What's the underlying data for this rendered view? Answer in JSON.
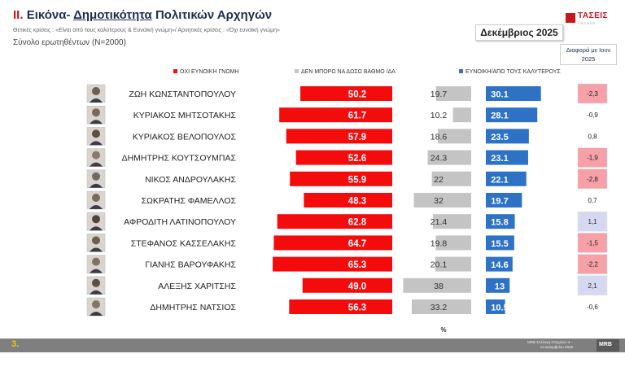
{
  "header": {
    "title_num": "II.",
    "title_a": "Εικόνα-",
    "title_b": "Δημοτικότητα",
    "title_c": "Πολιτικών Αρχηγών",
    "subtitle": "Θετικές κρίσεις : «Είναι από τους καλύτερους &  Ευνοϊκή γνώμη»/ Αρνητικές κρίσεις : «Όχι ευνοϊκή γνώμη»",
    "sample": "Σύνολο ερωτηθέντων (Ν=2000)",
    "month": "Δεκέμβριος 2025",
    "diff_header": "Διαφορά με Ιουν 2025",
    "logo_text": "ΤΑΣΕΙΣ",
    "logo_sub": "TRENDS"
  },
  "footer": {
    "page": "3.",
    "source": "MRB Συλλογή στοιχείων 4 –13 Δεκεμβρίου 2025",
    "logo": "MRB"
  },
  "colors": {
    "negative": "#f40c0c",
    "neutral": "#c4c4c4",
    "positive": "#2e72c6",
    "diff_red": "#f6a0a8",
    "diff_blue": "#d6d8f2",
    "diff_none": "#ffffff"
  },
  "chart_data": {
    "type": "bar",
    "unit": "%",
    "legend": [
      "ΟΧΙ ΕΥΝΟΙΚΗ ΓΝΩΜΗ",
      "ΔΕΝ ΜΠΟΡΩ ΝΑ ΔΩΣΩ ΒΑΘΜΟ /ΔΑ",
      "ΕΥΝΟΙΚΗ/ΑΠΟ ΤΟΥΣ ΚΑΛΥΤΕΡΟΥΣ"
    ],
    "categories": [
      "ΖΩΗ ΚΩΝΣΤΑΝΤΟΠΟΥΛΟΥ",
      "ΚΥΡΙΑΚΟΣ ΜΗΤΣΟΤΑΚΗΣ",
      "ΚΥΡΙΑΚΟΣ ΒΕΛΟΠΟΥΛΟΣ",
      "ΔΗΜΗΤΡΗΣ ΚΟΥΤΣΟΥΜΠΑΣ",
      "ΝΙΚΟΣ ΑΝΔΡΟΥΛΑΚΗΣ",
      "ΣΩΚΡΑΤΗΣ ΦΑΜΕΛΛΟΣ",
      "ΑΦΡΟΔΙΤΗ ΛΑΤΙΝΟΠΟΥΛΟΥ",
      "ΣΤΕΦΑΝΟΣ ΚΑΣΣΕΛΑΚΗΣ",
      "ΓΙΑΝΗΣ ΒΑΡΟΥΦΑΚΗΣ",
      "ΑΛΕΞΗΣ ΧΑΡΙΤΣΗΣ",
      "ΔΗΜΗΤΡΗΣ ΝΑΤΣΙΟΣ"
    ],
    "negative": [
      50.2,
      61.7,
      57.9,
      52.6,
      55.9,
      48.3,
      62.8,
      64.7,
      65.3,
      49.0,
      56.3
    ],
    "negative_labels": [
      "50.2",
      "61.7",
      "57.9",
      "52.6",
      "55.9",
      "48.3",
      "62.8",
      "64.7",
      "65.3",
      "49.0",
      "56.3"
    ],
    "neutral": [
      19.7,
      10.2,
      18.6,
      24.3,
      22,
      32,
      21.4,
      19.8,
      20.1,
      38,
      33.2
    ],
    "neutral_labels": [
      "19.7",
      "10.2",
      "18.6",
      "24.3",
      "22",
      "32",
      "21.4",
      "19.8",
      "20.1",
      "38",
      "33.2"
    ],
    "positive": [
      30.1,
      28.1,
      23.5,
      23.1,
      22.1,
      19.7,
      15.8,
      15.5,
      14.6,
      13,
      10.5
    ],
    "positive_labels": [
      "30.1",
      "28.1",
      "23.5",
      "23.1",
      "22.1",
      "19.7",
      "15.8",
      "15.5",
      "14.6",
      "13",
      "10.5"
    ],
    "diff_labels": [
      "-2,3",
      "-0,9",
      "0,8",
      "-1,9",
      "-2,8",
      "0,7",
      "1,1",
      "-1,5",
      "-2,2",
      "2,1",
      "-0,6"
    ],
    "diff_highlight": [
      "red",
      "none",
      "none",
      "red",
      "red",
      "none",
      "blue",
      "red",
      "red",
      "blue",
      "none"
    ]
  }
}
